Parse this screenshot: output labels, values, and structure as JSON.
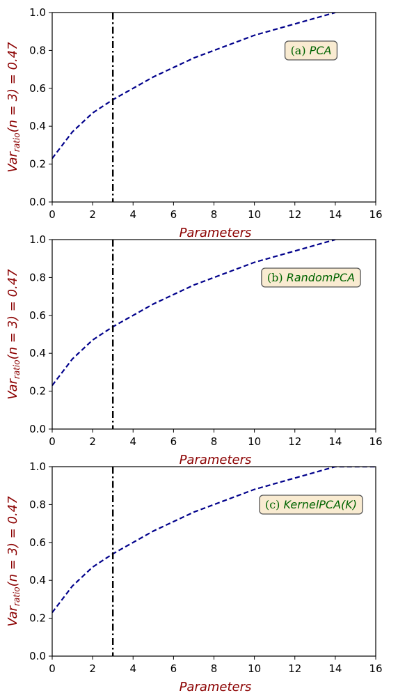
{
  "chart_data": [
    {
      "type": "line",
      "xlabel": "Parameters",
      "ylabel": "Var_ratio(n = 3) = 0.47",
      "ylabel_parts": {
        "base": "Var",
        "sub": "ratio",
        "rest": "(n = 3) = 0.47"
      },
      "annotation": {
        "prefix": "(a)",
        "name": "PCA"
      },
      "xlim": [
        0,
        16
      ],
      "ylim": [
        0,
        1
      ],
      "xticks": [
        "0",
        "2",
        "4",
        "6",
        "8",
        "10",
        "12",
        "14",
        "16"
      ],
      "yticks": [
        "0.0",
        "0.2",
        "0.4",
        "0.6",
        "0.8",
        "1.0"
      ],
      "vline_x": 3,
      "colors": {
        "line": "#00008b",
        "vline": "#000000",
        "annotation_bg": "#f5deb3"
      },
      "series": [
        {
          "x": [
            0,
            1,
            2,
            3,
            4,
            5,
            6,
            7,
            8,
            9,
            10,
            11,
            12,
            13,
            14
          ],
          "y": [
            0.23,
            0.37,
            0.47,
            0.54,
            0.6,
            0.66,
            0.71,
            0.76,
            0.8,
            0.84,
            0.88,
            0.91,
            0.94,
            0.97,
            1.0
          ]
        }
      ]
    },
    {
      "type": "line",
      "xlabel": "Parameters",
      "ylabel": "Var_ratio(n = 3) = 0.47",
      "ylabel_parts": {
        "base": "Var",
        "sub": "ratio",
        "rest": "(n = 3) = 0.47"
      },
      "annotation": {
        "prefix": "(b)",
        "name": "RandomPCA"
      },
      "xlim": [
        0,
        16
      ],
      "ylim": [
        0,
        1
      ],
      "xticks": [
        "0",
        "2",
        "4",
        "6",
        "8",
        "10",
        "12",
        "14",
        "16"
      ],
      "yticks": [
        "0.0",
        "0.2",
        "0.4",
        "0.6",
        "0.8",
        "1.0"
      ],
      "vline_x": 3,
      "colors": {
        "line": "#00008b",
        "vline": "#000000",
        "annotation_bg": "#f5deb3"
      },
      "series": [
        {
          "x": [
            0,
            1,
            2,
            3,
            4,
            5,
            6,
            7,
            8,
            9,
            10,
            11,
            12,
            13,
            14
          ],
          "y": [
            0.23,
            0.37,
            0.47,
            0.54,
            0.6,
            0.66,
            0.71,
            0.76,
            0.8,
            0.84,
            0.88,
            0.91,
            0.94,
            0.97,
            1.0
          ]
        }
      ]
    },
    {
      "type": "line",
      "xlabel": "Parameters",
      "ylabel": "Var_ratio(n = 3) = 0.47",
      "ylabel_parts": {
        "base": "Var",
        "sub": "ratio",
        "rest": "(n = 3) = 0.47"
      },
      "annotation": {
        "prefix": "(c)",
        "name": "KernelPCA(K)"
      },
      "xlim": [
        0,
        16
      ],
      "ylim": [
        0,
        1
      ],
      "xticks": [
        "0",
        "2",
        "4",
        "6",
        "8",
        "10",
        "12",
        "14",
        "16"
      ],
      "yticks": [
        "0.0",
        "0.2",
        "0.4",
        "0.6",
        "0.8",
        "1.0"
      ],
      "vline_x": 3,
      "colors": {
        "line": "#00008b",
        "vline": "#000000",
        "annotation_bg": "#f5deb3"
      },
      "series": [
        {
          "x": [
            0,
            1,
            2,
            3,
            4,
            5,
            6,
            7,
            8,
            9,
            10,
            11,
            12,
            13,
            14,
            15,
            16
          ],
          "y": [
            0.23,
            0.37,
            0.47,
            0.54,
            0.6,
            0.66,
            0.71,
            0.76,
            0.8,
            0.84,
            0.88,
            0.91,
            0.94,
            0.97,
            1.0,
            1.0,
            1.0
          ]
        }
      ]
    }
  ]
}
